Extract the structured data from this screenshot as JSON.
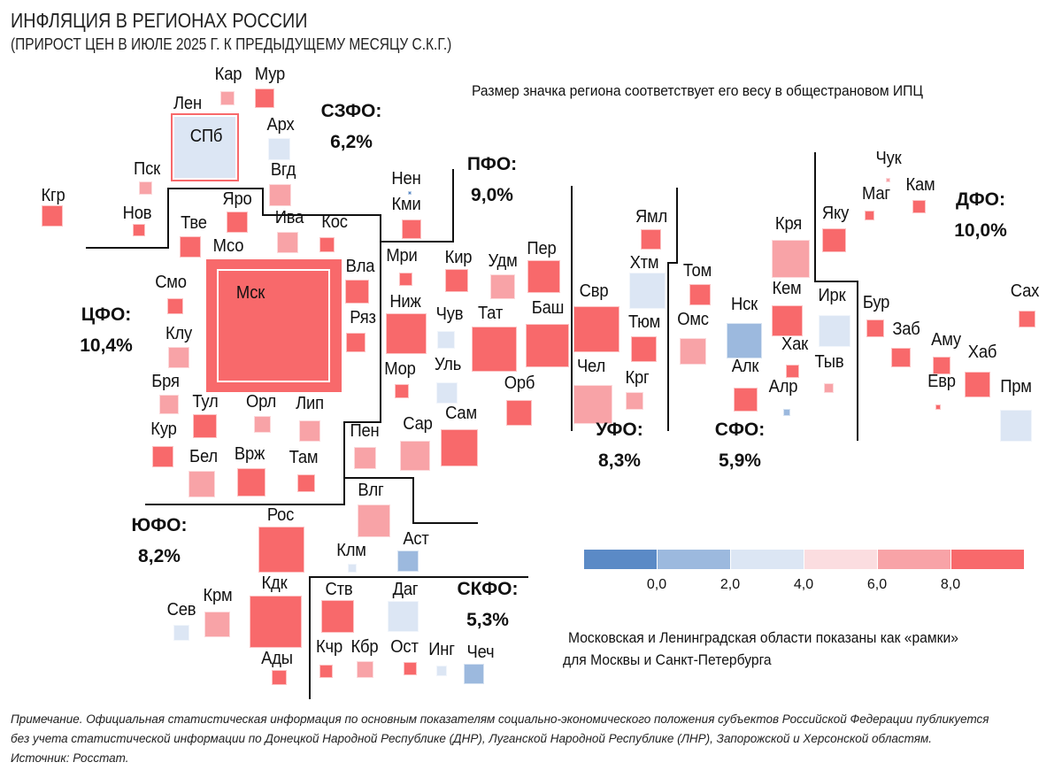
{
  "title": "ИНФЛЯЦИЯ В РЕГИОНАХ РОССИИ",
  "subtitle": "(ПРИРОСТ ЦЕН В ИЮЛЕ 2025 Г. К ПРЕДЫДУЩЕМУ МЕСЯЦУ С.К.Г.)",
  "size_note": "Размер значка региона соответствует его весу в общестрановом ИПЦ",
  "frames_note": [
    "Московская и Ленинградская области показаны как «рамки»",
    "для Москвы и Санкт-Петербурга"
  ],
  "colors": [
    "#5b8ac6",
    "#9cb9de",
    "#dce6f4",
    "#fbdde0",
    "#f8a3a7",
    "#f8696b"
  ],
  "legend": {
    "ticks": [
      "0,0",
      "2,0",
      "4,0",
      "6,0",
      "8,0"
    ]
  },
  "districts": [
    {
      "name": "СЗФО:",
      "value": "6,2%"
    },
    {
      "name": "ПФО:",
      "value": "9,0%"
    },
    {
      "name": "ЦФО:",
      "value": "10,4%"
    },
    {
      "name": "УФО:",
      "value": "8,3%"
    },
    {
      "name": "СФО:",
      "value": "5,9%"
    },
    {
      "name": "ДФО:",
      "value": "10,0%"
    },
    {
      "name": "ЮФО:",
      "value": "8,2%"
    },
    {
      "name": "СКФО:",
      "value": "5,3%"
    }
  ],
  "frames": [
    {
      "outer": "Лен",
      "inner": "СПб",
      "outer_color": 5,
      "inner_color": 2
    },
    {
      "outer": "Мсо",
      "inner": "Мск",
      "outer_color": 5,
      "inner_color": 5
    }
  ],
  "regions": [
    {
      "label": "Кар",
      "c": 4
    },
    {
      "label": "Мур",
      "c": 5
    },
    {
      "label": "Арх",
      "c": 2
    },
    {
      "label": "Пск",
      "c": 4
    },
    {
      "label": "Вгд",
      "c": 4
    },
    {
      "label": "Кгр",
      "c": 5
    },
    {
      "label": "Нов",
      "c": 5
    },
    {
      "label": "Яро",
      "c": 5
    },
    {
      "label": "Тве",
      "c": 5
    },
    {
      "label": "Ива",
      "c": 4
    },
    {
      "label": "Кос",
      "c": 5
    },
    {
      "label": "Вла",
      "c": 5
    },
    {
      "label": "Ряз",
      "c": 5
    },
    {
      "label": "Смо",
      "c": 5
    },
    {
      "label": "Клу",
      "c": 4
    },
    {
      "label": "Бря",
      "c": 4
    },
    {
      "label": "Тул",
      "c": 5
    },
    {
      "label": "Орл",
      "c": 4
    },
    {
      "label": "Лип",
      "c": 4
    },
    {
      "label": "Кур",
      "c": 5
    },
    {
      "label": "Бел",
      "c": 4
    },
    {
      "label": "Врж",
      "c": 5
    },
    {
      "label": "Там",
      "c": 5
    },
    {
      "label": "Нен",
      "c": 0
    },
    {
      "label": "Кми",
      "c": 5
    },
    {
      "label": "Мри",
      "c": 5
    },
    {
      "label": "Кир",
      "c": 5
    },
    {
      "label": "Удм",
      "c": 4
    },
    {
      "label": "Пер",
      "c": 5
    },
    {
      "label": "Ниж",
      "c": 5
    },
    {
      "label": "Чув",
      "c": 2
    },
    {
      "label": "Тат",
      "c": 5
    },
    {
      "label": "Баш",
      "c": 5
    },
    {
      "label": "Мор",
      "c": 5
    },
    {
      "label": "Уль",
      "c": 2
    },
    {
      "label": "Орб",
      "c": 5
    },
    {
      "label": "Пен",
      "c": 4
    },
    {
      "label": "Сар",
      "c": 4
    },
    {
      "label": "Сам",
      "c": 5
    },
    {
      "label": "Влг",
      "c": 4
    },
    {
      "label": "Рос",
      "c": 5
    },
    {
      "label": "Клм",
      "c": 2
    },
    {
      "label": "Аст",
      "c": 1
    },
    {
      "label": "Кдк",
      "c": 5
    },
    {
      "label": "Сев",
      "c": 2
    },
    {
      "label": "Крм",
      "c": 4
    },
    {
      "label": "Ады",
      "c": 5
    },
    {
      "label": "Ств",
      "c": 5
    },
    {
      "label": "Даг",
      "c": 2
    },
    {
      "label": "Кчр",
      "c": 5
    },
    {
      "label": "Кбр",
      "c": 4
    },
    {
      "label": "Ост",
      "c": 5
    },
    {
      "label": "Инг",
      "c": 2
    },
    {
      "label": "Чеч",
      "c": 1
    },
    {
      "label": "Свр",
      "c": 5
    },
    {
      "label": "Ямл",
      "c": 5
    },
    {
      "label": "Хтм",
      "c": 2
    },
    {
      "label": "Тюм",
      "c": 5
    },
    {
      "label": "Чел",
      "c": 4
    },
    {
      "label": "Крг",
      "c": 4
    },
    {
      "label": "Том",
      "c": 5
    },
    {
      "label": "Омс",
      "c": 4
    },
    {
      "label": "Нск",
      "c": 1
    },
    {
      "label": "Кря",
      "c": 4
    },
    {
      "label": "Кем",
      "c": 5
    },
    {
      "label": "Хак",
      "c": 5
    },
    {
      "label": "Тыв",
      "c": 4
    },
    {
      "label": "Алк",
      "c": 5
    },
    {
      "label": "Алр",
      "c": 1
    },
    {
      "label": "Ирк",
      "c": 2
    },
    {
      "label": "Яку",
      "c": 5
    },
    {
      "label": "Чук",
      "c": 4
    },
    {
      "label": "Маг",
      "c": 5
    },
    {
      "label": "Кам",
      "c": 5
    },
    {
      "label": "Бур",
      "c": 5
    },
    {
      "label": "Заб",
      "c": 5
    },
    {
      "label": "Аму",
      "c": 5
    },
    {
      "label": "Евр",
      "c": 5
    },
    {
      "label": "Хаб",
      "c": 5
    },
    {
      "label": "Сах",
      "c": 5
    },
    {
      "label": "Прм",
      "c": 2
    }
  ],
  "footer": [
    "Примечание. Официальная статистическая информация по основным показателям социально-экономического положения субъектов Российской Федерации публикуется",
    "без учета статистической информации по Донецкой Народной Республике (ДНР), Луганской Народной Республике (ЛНР), Запорожской и Херсонской областям.",
    "Источник: Росстат."
  ]
}
